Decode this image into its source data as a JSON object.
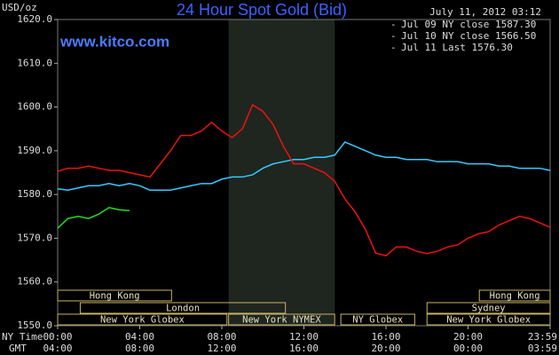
{
  "chart_data": {
    "type": "line",
    "title": "24 Hour Spot Gold (Bid)",
    "y_unit": "USD/oz",
    "timestamp": "July 11, 2012 03:12",
    "site": "www.kitco.com",
    "x_row_labels": [
      "NY Time",
      "GMT"
    ],
    "x": [
      0,
      0.5,
      1,
      1.5,
      2,
      2.5,
      3,
      3.5,
      4,
      4.5,
      5,
      5.5,
      6,
      6.5,
      7,
      7.5,
      8,
      8.5,
      9,
      9.5,
      10,
      10.5,
      11,
      11.5,
      12,
      12.5,
      13,
      13.5,
      14,
      14.5,
      15,
      15.5,
      16,
      16.5,
      17,
      17.5,
      18,
      18.5,
      19,
      19.5,
      20,
      20.5,
      21,
      21.5,
      22,
      22.5,
      23,
      23.5,
      24
    ],
    "series": [
      {
        "name": "Jul 09 NY close 1587.30",
        "color": "#33ccff",
        "values": [
          1581.3,
          1581,
          1581.5,
          1582,
          1582,
          1582.5,
          1582,
          1582.5,
          1582,
          1581,
          1581,
          1581,
          1581.5,
          1582,
          1582.5,
          1582.5,
          1583.5,
          1584,
          1584,
          1584.5,
          1586,
          1587,
          1587.5,
          1588,
          1588,
          1588.5,
          1588.5,
          1589,
          1592,
          1591,
          1590,
          1589,
          1588.5,
          1588.5,
          1588,
          1588,
          1588,
          1587.5,
          1587.5,
          1587.5,
          1587,
          1587,
          1587,
          1586.5,
          1586.5,
          1586,
          1586,
          1586,
          1585.5
        ]
      },
      {
        "name": "Jul 10 NY close 1566.50",
        "color": "#ee1111",
        "values": [
          1585.3,
          1586,
          1586,
          1586.5,
          1586,
          1585.5,
          1585.5,
          1585,
          1584.5,
          1584,
          1587,
          1590,
          1593.5,
          1593.5,
          1594.5,
          1596.5,
          1594.5,
          1593,
          1595,
          1600.5,
          1599,
          1596,
          1591,
          1587,
          1587,
          1586,
          1585,
          1583,
          1579,
          1576,
          1572,
          1566.6,
          1566,
          1568,
          1568,
          1567,
          1566.5,
          1567,
          1568,
          1568.5,
          1570,
          1571,
          1571.5,
          1573,
          1574,
          1575,
          1574.5,
          1573.5,
          1572.5
        ]
      },
      {
        "name": "Jul 11 Last 1576.30",
        "color": "#22dd22",
        "values": [
          1572.3,
          1574.5,
          1575,
          1574.5,
          1575.5,
          1577,
          1576.5,
          1576.3,
          null,
          null,
          null,
          null,
          null,
          null,
          null,
          null,
          null,
          null,
          null,
          null,
          null,
          null,
          null,
          null,
          null,
          null,
          null,
          null,
          null,
          null,
          null,
          null,
          null,
          null,
          null,
          null,
          null,
          null,
          null,
          null,
          null,
          null,
          null,
          null,
          null,
          null,
          null,
          null,
          null
        ]
      }
    ],
    "xlim": [
      0,
      24
    ],
    "xticks": [
      {
        "value": 0,
        "label": "00:00"
      },
      {
        "value": 4,
        "label": "04:00"
      },
      {
        "value": 8,
        "label": "08:00"
      },
      {
        "value": 12,
        "label": "12:00"
      },
      {
        "value": 16,
        "label": "16:00"
      },
      {
        "value": 20,
        "label": "20:00"
      },
      {
        "value": 24,
        "label": "23:59"
      }
    ],
    "gmt_labels": [
      "04:00",
      "08:00",
      "12:00",
      "16:00",
      "20:00",
      "00:00",
      "03:59"
    ],
    "ylim": [
      1550,
      1620
    ],
    "yticks": [
      {
        "value": 1550,
        "label": "1550.0"
      },
      {
        "value": 1560,
        "label": "1560.0"
      },
      {
        "value": 1570,
        "label": "1570.0"
      },
      {
        "value": 1580,
        "label": "1580.0"
      },
      {
        "value": 1590,
        "label": "1590.0"
      },
      {
        "value": 1600,
        "label": "1600.0"
      },
      {
        "value": 1610,
        "label": "1610.0"
      },
      {
        "value": 1620,
        "label": "1620.0"
      }
    ],
    "highlight_range": [
      8.33,
      13.5
    ],
    "sessions": [
      [
        {
          "label": "Hong Kong",
          "start": 0,
          "end": 5.55
        },
        {
          "label": "Hong Kong",
          "start": 20.55,
          "end": 24
        }
      ],
      [
        {
          "label": "London",
          "start": 1.1,
          "end": 11.1
        },
        {
          "label": "Sydney",
          "start": 18,
          "end": 24
        }
      ],
      [
        {
          "label": "New York Globex",
          "start": 0,
          "end": 8.25
        },
        {
          "label": "New York NYMEX",
          "start": 8.33,
          "end": 13.5
        },
        {
          "label": "NY Globex",
          "start": 13.8,
          "end": 17.4
        },
        {
          "label": "New York Globex",
          "start": 18,
          "end": 24
        }
      ]
    ]
  }
}
